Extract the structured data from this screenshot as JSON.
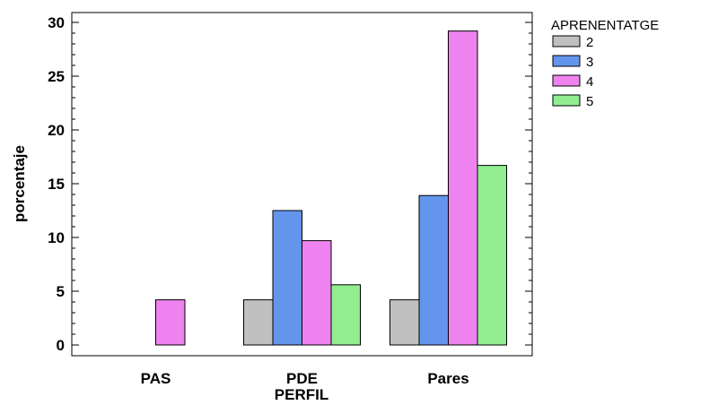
{
  "chart_data": {
    "type": "bar",
    "xlabel": "PERFIL",
    "ylabel": "porcentaje",
    "ylim": [
      0,
      30
    ],
    "yticks": [
      0,
      5,
      10,
      15,
      20,
      25,
      30
    ],
    "categories": [
      "PAS",
      "PDE",
      "Pares"
    ],
    "legend": {
      "title": "APRENENTATGE",
      "placement": "top-right"
    },
    "series": [
      {
        "name": "2",
        "color": "#c0c0c0",
        "values": [
          0,
          4.2,
          4.2
        ]
      },
      {
        "name": "3",
        "color": "#6495ed",
        "values": [
          0,
          12.5,
          13.9
        ]
      },
      {
        "name": "4",
        "color": "#ee82ee",
        "values": [
          4.2,
          9.7,
          29.2
        ]
      },
      {
        "name": "5",
        "color": "#90ee90",
        "values": [
          0,
          5.6,
          16.7
        ]
      }
    ]
  }
}
